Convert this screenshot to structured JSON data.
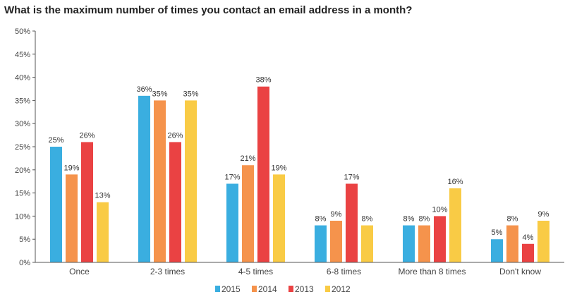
{
  "chart_data": {
    "type": "bar",
    "title": "What is the maximum number of times you contact an email address in a month?",
    "categories": [
      "Once",
      "2-3 times",
      "4-5 times",
      "6-8 times",
      "More than 8 times",
      "Don't know"
    ],
    "series": [
      {
        "name": "2015",
        "color": "#3aaee0",
        "values": [
          25,
          36,
          17,
          8,
          8,
          5
        ]
      },
      {
        "name": "2014",
        "color": "#f5934c",
        "values": [
          19,
          35,
          21,
          9,
          8,
          8
        ]
      },
      {
        "name": "2013",
        "color": "#ea4243",
        "values": [
          26,
          26,
          38,
          17,
          10,
          4
        ]
      },
      {
        "name": "2012",
        "color": "#f9cb45",
        "values": [
          13,
          35,
          19,
          8,
          16,
          9
        ]
      }
    ],
    "ylim": [
      0,
      50
    ],
    "yticks": [
      "0%",
      "5%",
      "10%",
      "15%",
      "20%",
      "25%",
      "30%",
      "35%",
      "40%",
      "45%",
      "50%"
    ],
    "value_suffix": "%",
    "legend_position": "bottom",
    "grid": false
  }
}
